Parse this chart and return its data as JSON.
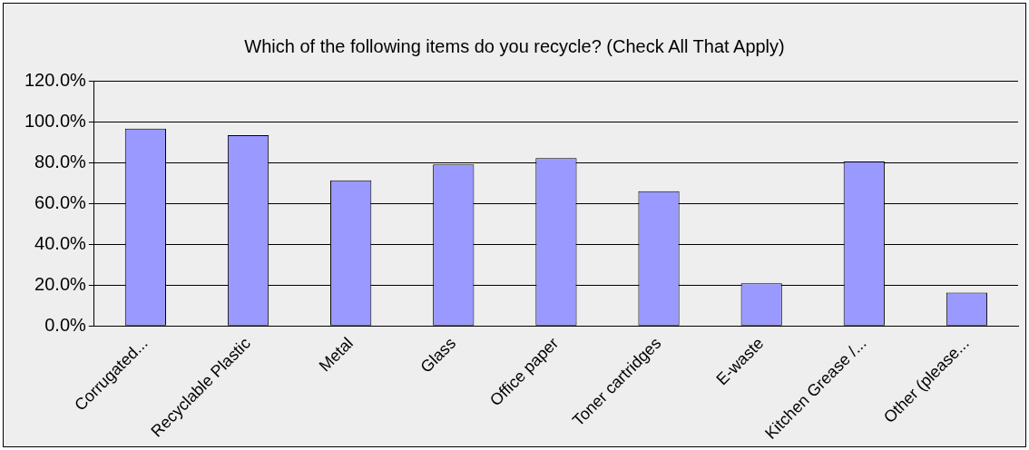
{
  "chart_data": {
    "type": "bar",
    "title": "Which of the following items do you recycle? (Check All That Apply)",
    "categories": [
      "Corrugated...",
      "Recyclable Plastic",
      "Metal",
      "Glass",
      "Office paper",
      "Toner cartridges",
      "E-waste",
      "Kitchen Grease /...",
      "Other (please..."
    ],
    "values": [
      96.6,
      93.4,
      71.3,
      79.1,
      82.2,
      65.9,
      20.9,
      80.5,
      16.3
    ],
    "color": "#9999ff",
    "ylim": [
      0,
      120
    ],
    "yticks": [
      {
        "value": 0,
        "label": "0.0%"
      },
      {
        "value": 20,
        "label": "20.0%"
      },
      {
        "value": 40,
        "label": "40.0%"
      },
      {
        "value": 60,
        "label": "60.0%"
      },
      {
        "value": 80,
        "label": "80.0%"
      },
      {
        "value": 100,
        "label": "100.0%"
      },
      {
        "value": 120,
        "label": "120.0%"
      }
    ],
    "grid": "y"
  }
}
